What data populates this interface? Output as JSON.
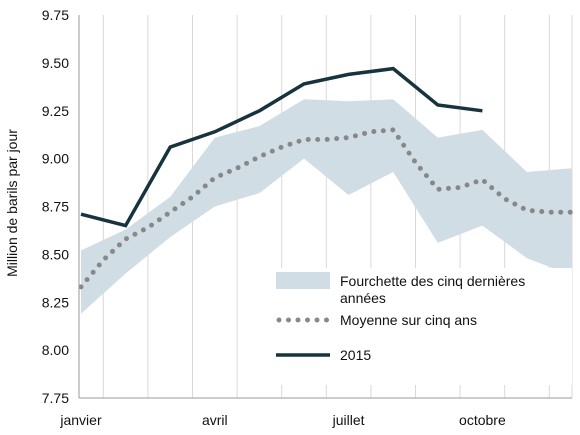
{
  "chart_data": {
    "type": "line",
    "ylabel": "Million de barils par jour",
    "ylim": [
      7.75,
      9.75
    ],
    "yticks": [
      "7.75",
      "8.00",
      "8.25",
      "8.50",
      "8.75",
      "9.00",
      "9.25",
      "9.50",
      "9.75"
    ],
    "x_tick_labels": [
      {
        "month_index": 0,
        "label": "janvier"
      },
      {
        "month_index": 3,
        "label": "avril"
      },
      {
        "month_index": 6,
        "label": "juillet"
      },
      {
        "month_index": 9,
        "label": "octobre"
      }
    ],
    "grid": "vertical",
    "legend_position": "bottom-right",
    "range_band": {
      "name": "Fourchette des cinq dernières années",
      "name_lines": [
        "Fourchette des cinq dernières",
        "années"
      ],
      "color": "#d1dde4",
      "low": [
        8.19,
        8.4,
        8.59,
        8.75,
        8.82,
        9.0,
        8.81,
        8.93,
        8.56,
        8.65,
        8.48,
        8.39
      ],
      "high": [
        8.52,
        8.63,
        8.8,
        9.11,
        9.17,
        9.31,
        9.3,
        9.31,
        9.11,
        9.15,
        8.93,
        8.95
      ]
    },
    "series": [
      {
        "name": "Moyenne sur cinq ans",
        "style": "dotted",
        "color": "#888888",
        "x": [
          0,
          0.5,
          1,
          1.5,
          2,
          2.5,
          3,
          3.5,
          4,
          4.5,
          5,
          5.5,
          6,
          6.5,
          7,
          7.5,
          8,
          8.5,
          9,
          9.5,
          10,
          10.5,
          11
        ],
        "values": [
          8.33,
          8.47,
          8.58,
          8.64,
          8.72,
          8.8,
          8.9,
          8.95,
          9.01,
          9.06,
          9.1,
          9.1,
          9.11,
          9.14,
          9.15,
          8.98,
          8.84,
          8.85,
          8.89,
          8.79,
          8.73,
          8.72,
          8.72
        ]
      },
      {
        "name": "2015",
        "style": "solid",
        "color": "#17343e",
        "x": [
          0,
          1,
          2,
          3,
          4,
          5,
          6,
          7,
          8,
          9
        ],
        "values": [
          8.71,
          8.65,
          9.06,
          9.14,
          9.25,
          9.39,
          9.44,
          9.47,
          9.28,
          9.25
        ]
      }
    ]
  }
}
